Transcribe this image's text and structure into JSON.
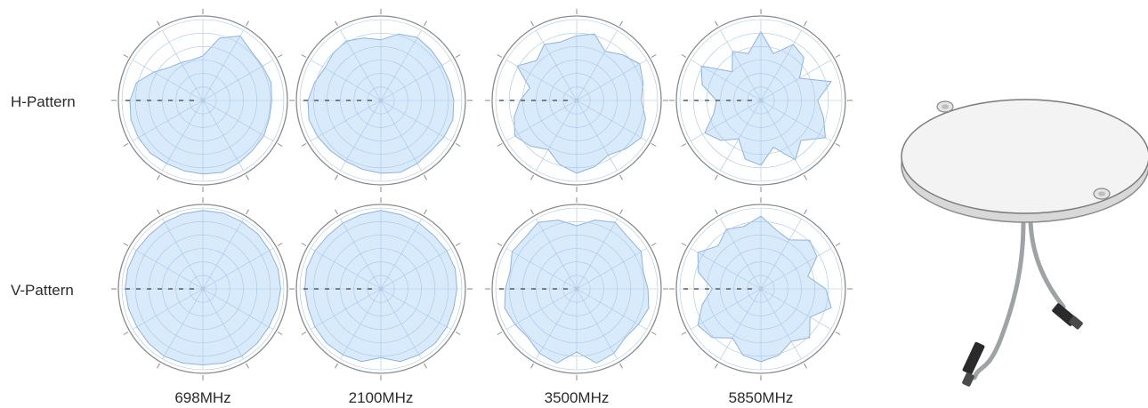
{
  "chart_data": {
    "type": "polar-area-grid",
    "rows": [
      "H-Pattern",
      "V-Pattern"
    ],
    "columns": [
      "698MHz",
      "2100MHz",
      "3500MHz",
      "5850MHz"
    ],
    "angles_deg": [
      0,
      30,
      60,
      90,
      120,
      150,
      180,
      210,
      240,
      270,
      300,
      330
    ],
    "radial_range": [
      0,
      1
    ],
    "grid": true,
    "fill_color": "#d9ebfb",
    "fill_stroke": "#8db2de",
    "grid_color": "#a6c6e8",
    "patterns": [
      {
        "row": "H-Pattern",
        "frequency": "698MHz",
        "gain": [
          0.55,
          0.8,
          0.92,
          0.85,
          0.85,
          0.87,
          0.85,
          0.85,
          0.87,
          0.87,
          0.89,
          0.92,
          0.91,
          0.9,
          0.9,
          0.92,
          0.92,
          0.92,
          0.9,
          0.85,
          0.7,
          0.58,
          0.54,
          0.52
        ]
      },
      {
        "row": "H-Pattern",
        "frequency": "2100MHz",
        "gain": [
          0.75,
          0.85,
          0.9,
          0.88,
          0.87,
          0.88,
          0.9,
          0.92,
          0.9,
          0.88,
          0.9,
          0.92,
          0.9,
          0.88,
          0.87,
          0.88,
          0.9,
          0.92,
          0.9,
          0.85,
          0.8,
          0.83,
          0.85,
          0.8
        ]
      },
      {
        "row": "H-Pattern",
        "frequency": "3500MHz",
        "gain": [
          0.8,
          0.85,
          0.7,
          0.8,
          0.9,
          0.85,
          0.8,
          0.88,
          0.92,
          0.85,
          0.78,
          0.85,
          0.9,
          0.82,
          0.7,
          0.8,
          0.88,
          0.8,
          0.7,
          0.6,
          0.85,
          0.7,
          0.8,
          0.75
        ]
      },
      {
        "row": "H-Pattern",
        "frequency": "5850MHz",
        "gain": [
          0.85,
          0.6,
          0.8,
          0.75,
          0.55,
          0.9,
          0.7,
          0.8,
          0.92,
          0.7,
          0.85,
          0.6,
          0.8,
          0.75,
          0.55,
          0.7,
          0.8,
          0.6,
          0.55,
          0.75,
          0.85,
          0.5,
          0.7,
          0.6
        ]
      },
      {
        "row": "V-Pattern",
        "frequency": "698MHz",
        "gain": [
          0.97,
          0.97,
          0.96,
          0.96,
          0.95,
          0.96,
          0.96,
          0.95,
          0.94,
          0.95,
          0.96,
          0.95,
          0.94,
          0.95,
          0.96,
          0.95,
          0.94,
          0.95,
          0.96,
          0.96,
          0.95,
          0.94,
          0.95,
          0.96
        ]
      },
      {
        "row": "V-Pattern",
        "frequency": "2100MHz",
        "gain": [
          0.97,
          0.95,
          0.94,
          0.93,
          0.94,
          0.95,
          0.94,
          0.93,
          0.94,
          0.95,
          0.94,
          0.93,
          0.85,
          0.93,
          0.94,
          0.95,
          0.94,
          0.93,
          0.94,
          0.95,
          0.94,
          0.93,
          0.94,
          0.95
        ]
      },
      {
        "row": "V-Pattern",
        "frequency": "3500MHz",
        "gain": [
          0.78,
          0.88,
          0.95,
          0.9,
          0.92,
          0.85,
          0.88,
          0.92,
          0.88,
          0.85,
          0.92,
          0.95,
          0.78,
          0.95,
          0.92,
          0.85,
          0.88,
          0.92,
          0.88,
          0.85,
          0.92,
          0.9,
          0.95,
          0.88
        ]
      },
      {
        "row": "V-Pattern",
        "frequency": "5850MHz",
        "gain": [
          0.9,
          0.75,
          0.7,
          0.85,
          0.8,
          0.6,
          0.8,
          0.9,
          0.7,
          0.85,
          0.75,
          0.85,
          0.9,
          0.85,
          0.7,
          0.85,
          0.9,
          0.75,
          0.6,
          0.8,
          0.9,
          0.75,
          0.85,
          0.8
        ]
      }
    ]
  },
  "product_image": {
    "name": "round-disc-antenna-with-two-cables",
    "body_color": "#f3f3f3",
    "cable_color": "#9ea4a6",
    "connector_color": "#2a2a2a"
  }
}
